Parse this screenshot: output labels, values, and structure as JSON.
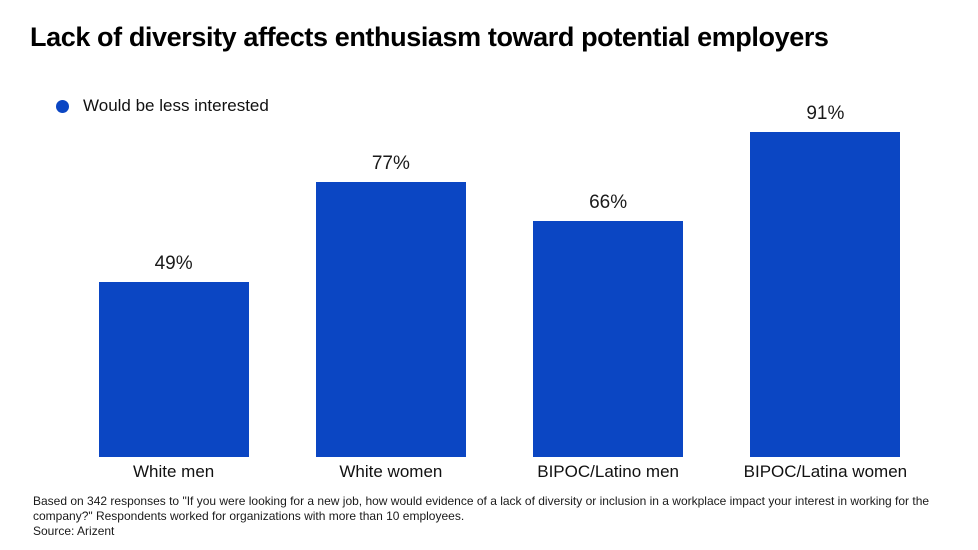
{
  "header": {
    "title": "Lack of diversity affects enthusiasm toward potential employers"
  },
  "legend": {
    "label": "Would be less interested",
    "marker_color": "#0b46c3"
  },
  "chart_data": {
    "type": "bar",
    "title": "Lack of diversity affects enthusiasm toward potential employers",
    "categories": [
      "White men",
      "White women",
      "BIPOC/Latino men",
      "BIPOC/Latina women"
    ],
    "series": [
      {
        "name": "Would be less interested",
        "values": [
          49,
          77,
          66,
          91
        ]
      }
    ],
    "value_labels": [
      "49%",
      "77%",
      "66%",
      "91%"
    ],
    "xlabel": "",
    "ylabel": "",
    "ylim": [
      0,
      100
    ],
    "grid": false,
    "axes_visible": false,
    "legend_position": "top-left",
    "bar_color": "#0b46c3",
    "label_color": "#1a1a1a"
  },
  "footer": {
    "note": "Based on 342 responses to \"If you were looking for a new job, how would evidence of a lack of diversity or inclusion in a workplace impact your interest in working for the company?\" Respondents worked for organizations with more than 10 employees.",
    "source": "Source: Arizent"
  }
}
